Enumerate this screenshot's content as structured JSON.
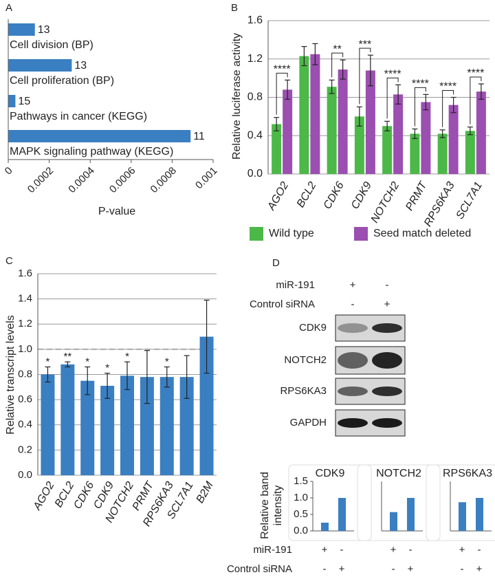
{
  "chart_data": [
    {
      "panel": "A",
      "type": "hbar",
      "categories": [
        "Cell division (BP)",
        "Cell proliferation (BP)",
        "Pathways in cancer (KEGG)",
        "MAPK signaling pathway (KEGG)"
      ],
      "values": [
        0.00013,
        0.00031,
        3.5e-05,
        0.00089
      ],
      "gene_counts": [
        13,
        13,
        15,
        11
      ],
      "color": "#3a7fc1",
      "xlabel": "P-value",
      "xlim": [
        0,
        0.001
      ],
      "xticks": [
        0,
        0.0002,
        0.0004,
        0.0006,
        0.0008,
        0.001
      ]
    },
    {
      "panel": "B",
      "type": "grouped_bar_error",
      "ylabel": "Relative luciferase activity",
      "categories": [
        "AGO2",
        "BCL2",
        "CDK6",
        "CDK9",
        "NOTCH2",
        "PRMT",
        "RPS6KA3",
        "SCL7A1"
      ],
      "series": [
        {
          "name": "Wild type",
          "color": "#4cb848",
          "values": [
            0.52,
            1.23,
            0.91,
            0.6,
            0.5,
            0.42,
            0.42,
            0.45
          ],
          "errors": [
            0.07,
            0.1,
            0.07,
            0.1,
            0.05,
            0.05,
            0.04,
            0.04
          ]
        },
        {
          "name": "Seed match deleted",
          "color": "#9b4fb0",
          "values": [
            0.88,
            1.25,
            1.09,
            1.08,
            0.83,
            0.75,
            0.72,
            0.86
          ],
          "errors": [
            0.1,
            0.11,
            0.1,
            0.16,
            0.1,
            0.08,
            0.08,
            0.08
          ]
        }
      ],
      "significance": [
        "****",
        null,
        "**",
        "***",
        "****",
        "****",
        "****",
        "****"
      ],
      "ylim": [
        0,
        1.6
      ],
      "yticks": [
        {
          "value": 0,
          "label": "0.0"
        },
        {
          "value": 0.4,
          "label": "0.4"
        },
        {
          "value": 0.8,
          "label": "0.8"
        },
        {
          "value": 1.2,
          "label": "1.2"
        },
        {
          "value": 1.6,
          "label": "1.6"
        }
      ],
      "grid": true
    },
    {
      "panel": "C",
      "type": "bar_error",
      "ylabel": "Relative transcript levels",
      "categories": [
        "AGO2",
        "BCL2",
        "CDK6",
        "CDK9",
        "NOTCH2",
        "PRMT",
        "RPS6KA3",
        "SCL7A1",
        "B2M"
      ],
      "values": [
        0.8,
        0.88,
        0.75,
        0.71,
        0.79,
        0.78,
        0.78,
        0.78,
        1.1
      ],
      "errors": [
        0.06,
        0.02,
        0.11,
        0.1,
        0.11,
        0.21,
        0.08,
        0.17,
        0.29
      ],
      "significance": [
        "*",
        "**",
        "*",
        "*",
        "*",
        null,
        "*",
        null,
        null
      ],
      "color": "#3a7fc1",
      "reference_line": 1,
      "ylim": [
        0,
        1.6
      ],
      "yticks": [
        {
          "value": 0,
          "label": "0.0"
        },
        {
          "value": 0.2,
          "label": "0.2"
        },
        {
          "value": 0.4,
          "label": "0.4"
        },
        {
          "value": 0.6,
          "label": "0.6"
        },
        {
          "value": 0.8,
          "label": "0.8"
        },
        {
          "value": 1,
          "label": "1.0"
        },
        {
          "value": 1.2,
          "label": "1.2"
        },
        {
          "value": 1.4,
          "label": "1.4"
        },
        {
          "value": 1.6,
          "label": "1.6"
        }
      ],
      "grid": true
    },
    {
      "type": "bar",
      "title": "CDK9",
      "ylabel": "Relative band intensity",
      "values": [
        0.25,
        1.0
      ],
      "color": "#3a7fc1",
      "ylim": [
        0,
        1.5
      ],
      "yticks": [
        {
          "value": 0,
          "label": "0.0"
        },
        {
          "value": 0.5,
          "label": "0.5"
        },
        {
          "value": 1,
          "label": "1.0"
        },
        {
          "value": 1.5,
          "label": "1.5"
        }
      ]
    },
    {
      "type": "bar",
      "title": "NOTCH2",
      "values": [
        0.57,
        1.0
      ],
      "color": "#3a7fc1",
      "ylim": [
        0,
        1.5
      ]
    },
    {
      "type": "bar",
      "title": "RPS6KA3",
      "values": [
        0.87,
        1.0
      ],
      "color": "#3a7fc1",
      "ylim": [
        0,
        1.5
      ]
    }
  ],
  "blot": {
    "panel": "D",
    "conditions": [
      {
        "name": "miR-191",
        "signs": [
          "+",
          "-"
        ]
      },
      {
        "name": "Control siRNA",
        "signs": [
          "-",
          "+"
        ]
      }
    ],
    "rows": [
      "CDK9",
      "NOTCH2",
      "RPS6KA3",
      "GAPDH"
    ]
  }
}
